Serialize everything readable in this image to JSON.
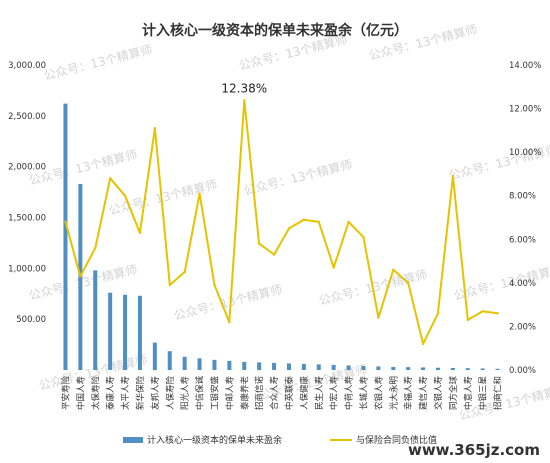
{
  "chart_data": {
    "type": "bar+line",
    "title": "计入核心一级资本的保单未来盈余（亿元）",
    "categories": [
      "平安寿险",
      "中国人寿",
      "太保寿险",
      "泰康人寿",
      "太平人寿",
      "新华保险",
      "友邦人寿",
      "人保寿险",
      "阳光人寿",
      "中信保诚",
      "工银安盛",
      "中邮人寿",
      "泰康养老",
      "招商信诺",
      "合众人寿",
      "中英联泰",
      "人保健康",
      "民生人寿",
      "中宏人寿",
      "中荷人寿",
      "长城人寿",
      "农银人寿",
      "光大永明",
      "幸福人寿",
      "建信人寿",
      "交银人寿",
      "同方全球",
      "中意人寿",
      "中银三星",
      "招商仁和"
    ],
    "series": [
      {
        "name": "计入核心一级资本的保单未来盈余",
        "type": "bar",
        "axis": "left",
        "color": "#4f8fc2",
        "values": [
          2620,
          1830,
          980,
          760,
          740,
          730,
          270,
          185,
          130,
          115,
          100,
          90,
          80,
          75,
          70,
          65,
          60,
          55,
          50,
          45,
          40,
          35,
          30,
          28,
          25,
          22,
          20,
          18,
          15,
          12
        ]
      },
      {
        "name": "与保险合同负债比值",
        "type": "line",
        "axis": "right",
        "unit": "%",
        "color": "#e6c300",
        "values": [
          6.8,
          4.3,
          5.6,
          8.8,
          8.0,
          6.3,
          11.1,
          3.9,
          4.5,
          8.1,
          3.9,
          2.2,
          12.38,
          5.8,
          5.3,
          6.5,
          6.9,
          6.8,
          4.7,
          6.8,
          6.1,
          2.4,
          4.6,
          4.0,
          1.2,
          2.6,
          8.9,
          2.3,
          2.7,
          2.6
        ]
      }
    ],
    "yleft": {
      "ylim": [
        0,
        3000
      ],
      "ticks": [
        "",
        "500.00",
        "1,000.00",
        "1,500.00",
        "2,000.00",
        "2,500.00",
        "3,000.00"
      ]
    },
    "yright": {
      "ylim": [
        0,
        14
      ],
      "ticks": [
        "0.00%",
        "2.00%",
        "4.00%",
        "6.00%",
        "8.00%",
        "10.00%",
        "12.00%",
        "14.00%"
      ]
    },
    "annotation": {
      "text": "12.38%",
      "category_index": 12
    },
    "legend": {
      "position": "bottom"
    },
    "grid": false
  },
  "watermark": "公众号：13个精算师",
  "site": "www.365jz.com"
}
